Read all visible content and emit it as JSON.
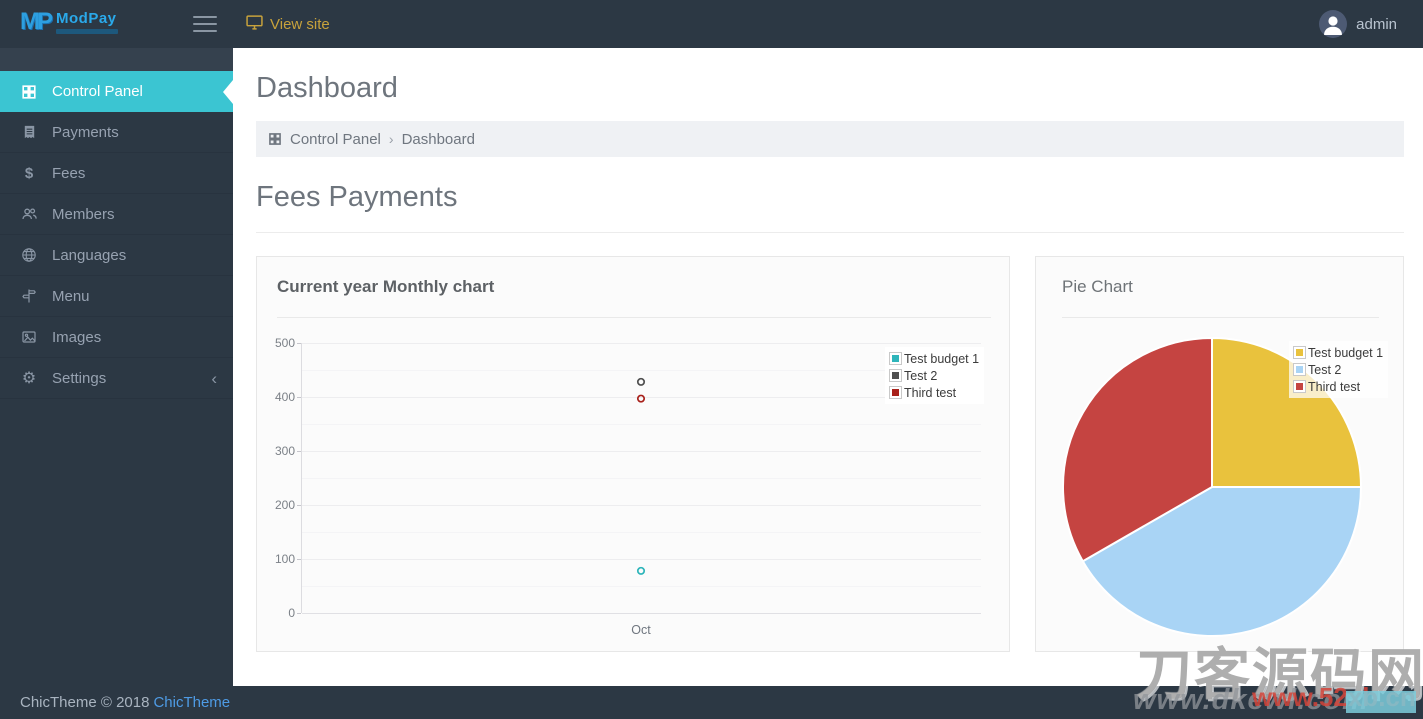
{
  "header": {
    "logo_mark": "MP",
    "logo_name": "ModPay",
    "view_site_label": "View site",
    "user_name": "admin"
  },
  "sidebar": {
    "items": [
      {
        "label": "Control Panel",
        "active": true
      },
      {
        "label": "Payments"
      },
      {
        "label": "Fees"
      },
      {
        "label": "Members"
      },
      {
        "label": "Languages"
      },
      {
        "label": "Menu"
      },
      {
        "label": "Images"
      },
      {
        "label": "Settings",
        "has_submenu": true
      }
    ]
  },
  "page": {
    "title": "Dashboard",
    "breadcrumb_home": "Control Panel",
    "breadcrumb_sep": "›",
    "breadcrumb_current": "Dashboard",
    "section_title": "Fees Payments"
  },
  "footer": {
    "copyright": "ChicTheme © 2018",
    "theme_link": "ChicTheme"
  },
  "watermark": {
    "cn_text": "刀客源码网",
    "url_gray": "www.dkewl.com",
    "url_red": "www.52xb.cn"
  },
  "chart_data": [
    {
      "type": "scatter",
      "title": "Current year Monthly chart",
      "categories": [
        "Oct"
      ],
      "series": [
        {
          "name": "Test budget 1",
          "color": "#2eb5ba",
          "values": [
            78
          ]
        },
        {
          "name": "Test 2",
          "color": "#4f4f4f",
          "values": [
            428
          ]
        },
        {
          "name": "Third test",
          "color": "#a8201a",
          "values": [
            397
          ]
        }
      ],
      "xlabel": "",
      "ylabel": "",
      "ylim": [
        0,
        500
      ],
      "yticks": [
        0,
        100,
        200,
        300,
        400,
        500
      ],
      "grid": true,
      "legend_position": "top-right"
    },
    {
      "type": "pie",
      "title": "Pie Chart",
      "slices": [
        {
          "label": "Test budget 1",
          "color": "#e9c23d",
          "percent": 25
        },
        {
          "label": "Test 2",
          "color": "#a9d4f5",
          "percent": 41.7
        },
        {
          "label": "Third test",
          "color": "#c54441",
          "percent": 33.3
        }
      ],
      "legend_position": "top-right"
    }
  ]
}
